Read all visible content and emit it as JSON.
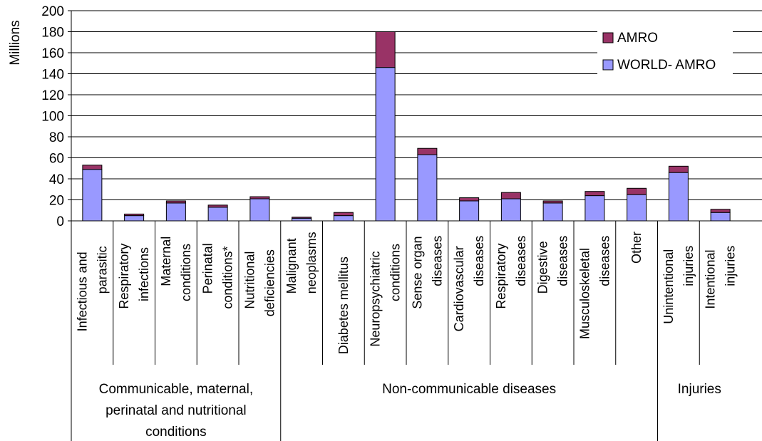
{
  "chart_data": {
    "type": "bar",
    "stacked": true,
    "ylabel": "Millions",
    "ylim": [
      0,
      200
    ],
    "yticks": [
      0,
      20,
      40,
      60,
      80,
      100,
      120,
      140,
      160,
      180,
      200
    ],
    "categories": [
      [
        "Infectious and",
        "parasitic"
      ],
      [
        "Respiratory",
        "infections"
      ],
      [
        "Maternal",
        "conditions"
      ],
      [
        "Perinatal",
        "conditions*"
      ],
      [
        "Nutritional",
        "deficiencies"
      ],
      [
        "Malignant",
        "neoplasms"
      ],
      [
        "Diabetes mellitus"
      ],
      [
        "Neuropsychiatric",
        "conditions"
      ],
      [
        "Sense organ",
        "diseases"
      ],
      [
        "Cardiovascular",
        "diseases"
      ],
      [
        "Respiratory",
        "diseases"
      ],
      [
        "Digestive",
        "diseases"
      ],
      [
        "Musculoskeletal",
        "diseases"
      ],
      [
        "Other"
      ],
      [
        "Unintentional",
        "injuries"
      ],
      [
        "Intentional",
        "injuries"
      ]
    ],
    "series": [
      {
        "name": "WORLD- AMRO",
        "color": "#9999ff",
        "values": [
          49,
          5,
          17,
          13,
          21,
          2.5,
          5,
          146,
          63,
          19,
          21,
          17,
          24,
          25,
          46,
          8
        ]
      },
      {
        "name": "AMRO",
        "color": "#993366",
        "values": [
          4,
          1.5,
          2,
          2,
          2,
          1,
          3,
          34,
          6,
          3,
          6,
          2,
          4,
          6,
          6,
          3
        ]
      }
    ],
    "groups": [
      {
        "label": [
          "Communicable, maternal,",
          "perinatal and nutritional",
          "conditions"
        ],
        "span": [
          0,
          4
        ]
      },
      {
        "label": [
          "Non-communicable diseases"
        ],
        "span": [
          5,
          13
        ]
      },
      {
        "label": [
          "Injuries"
        ],
        "span": [
          14,
          15
        ]
      }
    ],
    "grid": true,
    "legend_position": "top-right"
  }
}
